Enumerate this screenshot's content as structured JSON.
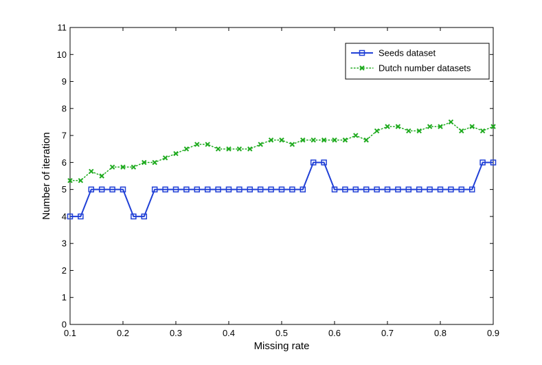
{
  "chart_data": {
    "type": "line",
    "title": "",
    "xlabel": "Missing rate",
    "ylabel": "Number of iteration",
    "xlim": [
      0.1,
      0.9
    ],
    "ylim": [
      0,
      11
    ],
    "xticks": [
      0.1,
      0.2,
      0.3,
      0.4,
      0.5,
      0.6,
      0.7,
      0.8,
      0.9
    ],
    "xtick_labels": [
      "0.1",
      "0.2",
      "0.3",
      "0.4",
      "0.5",
      "0.6",
      "0.7",
      "0.8",
      "0.9"
    ],
    "yticks": [
      0,
      1,
      2,
      3,
      4,
      5,
      6,
      7,
      8,
      9,
      10,
      11
    ],
    "ytick_labels": [
      "0",
      "1",
      "2",
      "3",
      "4",
      "5",
      "6",
      "7",
      "8",
      "9",
      "10",
      "11"
    ],
    "grid": false,
    "legend_position": "top-right",
    "x": [
      0.1,
      0.12,
      0.14,
      0.16,
      0.18,
      0.2,
      0.22,
      0.24,
      0.26,
      0.28,
      0.3,
      0.32,
      0.34,
      0.36,
      0.38,
      0.4,
      0.42,
      0.44,
      0.46,
      0.48,
      0.5,
      0.52,
      0.54,
      0.56,
      0.58,
      0.6,
      0.62,
      0.64,
      0.66,
      0.68,
      0.7,
      0.72,
      0.74,
      0.76,
      0.78,
      0.8,
      0.82,
      0.84,
      0.86,
      0.88,
      0.9
    ],
    "series": [
      {
        "name": "Seeds dataset",
        "color": "#1f3fd6",
        "marker": "square",
        "line_style": "solid",
        "values": [
          4,
          4,
          5,
          5,
          5,
          5,
          4,
          4,
          5,
          5,
          5,
          5,
          5,
          5,
          5,
          5,
          5,
          5,
          5,
          5,
          5,
          5,
          5,
          6,
          6,
          5,
          5,
          5,
          5,
          5,
          5,
          5,
          5,
          5,
          5,
          5,
          5,
          5,
          5,
          6,
          6
        ]
      },
      {
        "name": "Dutch number datasets",
        "color": "#1faa1f",
        "marker": "x",
        "line_style": "dotted",
        "values": [
          5.33,
          5.33,
          5.67,
          5.5,
          5.83,
          5.83,
          5.83,
          6.0,
          6.0,
          6.17,
          6.33,
          6.5,
          6.67,
          6.67,
          6.5,
          6.5,
          6.5,
          6.5,
          6.67,
          6.83,
          6.83,
          6.67,
          6.83,
          6.83,
          6.83,
          6.83,
          6.83,
          7.0,
          6.83,
          7.17,
          7.33,
          7.33,
          7.17,
          7.17,
          7.33,
          7.33,
          7.5,
          7.17,
          7.33,
          7.17,
          7.33
        ]
      }
    ]
  }
}
